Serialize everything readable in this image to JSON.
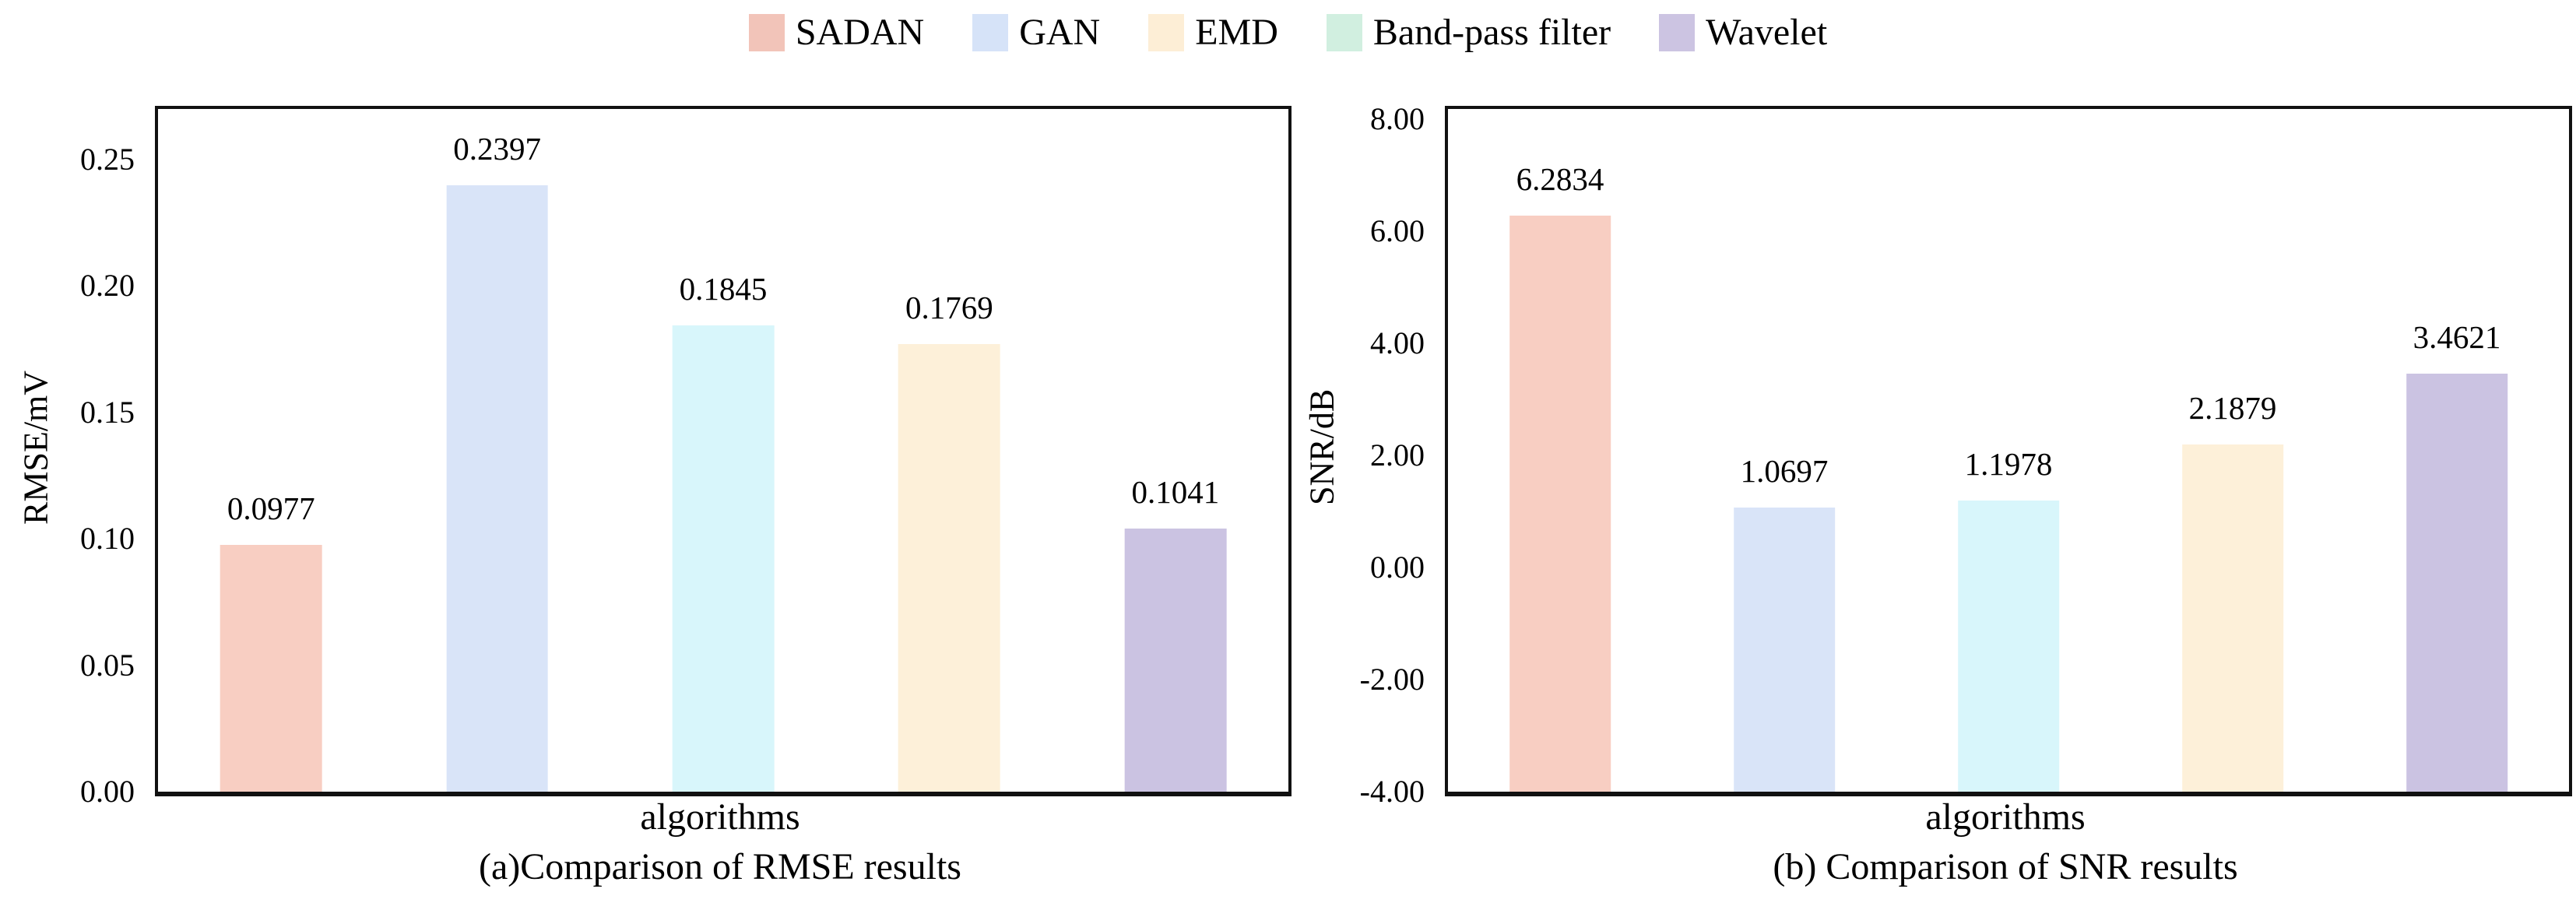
{
  "figure": {
    "background": "#ffffff",
    "text_color": "#000000",
    "axis_color": "#111111"
  },
  "legend": {
    "position": "top-center",
    "items": [
      {
        "label": "SADAN",
        "color": "#f2c4b9"
      },
      {
        "label": "GAN",
        "color": "#d6e3f8"
      },
      {
        "label": "EMD",
        "color": "#fdeed6"
      },
      {
        "label": "Band-pass filter",
        "color": "#d1efe0"
      },
      {
        "label": "Wavelet",
        "color": "#ccc4e2"
      }
    ]
  },
  "chart_data": [
    {
      "type": "bar",
      "title": "(a)Comparison of RMSE results",
      "xlabel": "algorithms",
      "ylabel": "RMSE/mV",
      "categories": [
        "SADAN",
        "GAN",
        "Band-pass filter",
        "EMD",
        "Wavelet"
      ],
      "values": [
        0.0977,
        0.2397,
        0.1845,
        0.1769,
        0.1041
      ],
      "value_labels": [
        "0.0977",
        "0.2397",
        "0.1845",
        "0.1769",
        "0.1041"
      ],
      "bar_colors": [
        "#f8cec2",
        "#d9e4f8",
        "#d8f6fb",
        "#fdf0d9",
        "#cbc3e2"
      ],
      "ylim": [
        0,
        0.27
      ],
      "yticks": [
        {
          "v": 0.25,
          "label": "0.25"
        },
        {
          "v": 0.2,
          "label": "0.20"
        },
        {
          "v": 0.15,
          "label": "0.15"
        },
        {
          "v": 0.1,
          "label": "0.10"
        },
        {
          "v": 0.05,
          "label": "0.05"
        },
        {
          "v": 0.0,
          "label": "0.00"
        }
      ],
      "grid": false,
      "legend_position": "shared-top-center"
    },
    {
      "type": "bar",
      "title": "(b) Comparison of SNR results",
      "xlabel": "algorithms",
      "ylabel": "SNR/dB",
      "categories": [
        "SADAN",
        "GAN",
        "Band-pass filter",
        "EMD",
        "Wavelet"
      ],
      "values": [
        6.2834,
        1.0697,
        1.1978,
        2.1879,
        3.4621
      ],
      "value_labels": [
        "6.2834",
        "1.0697",
        "1.1978",
        "2.1879",
        "3.4621"
      ],
      "bar_colors": [
        "#f8cec2",
        "#d9e4f8",
        "#d8f6fb",
        "#fdf0d9",
        "#cbc3e2"
      ],
      "ylim": [
        -4,
        8.18
      ],
      "yticks": [
        {
          "v": 8,
          "label": "8.00"
        },
        {
          "v": 6,
          "label": "6.00"
        },
        {
          "v": 4,
          "label": "4.00"
        },
        {
          "v": 2,
          "label": "2.00"
        },
        {
          "v": 0,
          "label": "0.00"
        },
        {
          "v": -2,
          "label": "-2.00"
        },
        {
          "v": -4,
          "label": "-4.00"
        }
      ],
      "grid": false,
      "legend_position": "shared-top-center"
    }
  ]
}
